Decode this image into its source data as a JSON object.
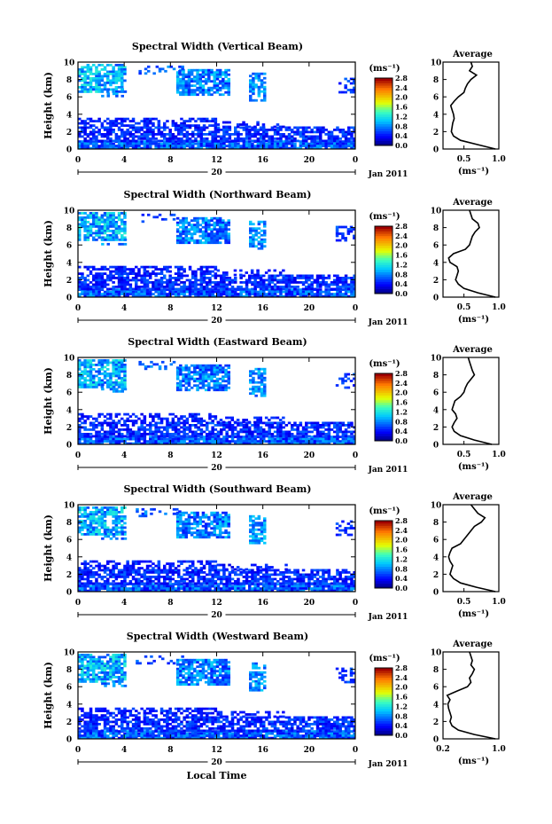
{
  "chart_data": [
    {
      "type": "heatmap",
      "title": "Spectral Width (Vertical Beam)",
      "ylabel": "Height (km)",
      "xticks": [
        "0",
        "4",
        "8",
        "12",
        "16",
        "20",
        "0"
      ],
      "xlim": [
        0,
        24
      ],
      "ylim": [
        0,
        10
      ],
      "yticks": [
        "0",
        "2",
        "4",
        "6",
        "8",
        "10"
      ],
      "date_label": "20",
      "month_label": "Jan 2011",
      "colorbar": {
        "unit": "(ms⁻¹)",
        "ticks": [
          "0.0",
          "0.4",
          "0.8",
          "1.2",
          "1.6",
          "2.0",
          "2.4",
          "2.8"
        ],
        "range": [
          0,
          2.8
        ]
      },
      "profile": {
        "title": "Average",
        "xlabel": "(ms⁻¹)",
        "xticks": [
          "0.5",
          "1.0"
        ],
        "xlim": [
          0.2,
          1.0
        ],
        "ylim": [
          0,
          10
        ],
        "heights": [
          0,
          0.5,
          1,
          1.5,
          2,
          2.5,
          3,
          3.5,
          4,
          4.5,
          5,
          5.5,
          6,
          6.5,
          7,
          7.5,
          8,
          8.5,
          9,
          9.5,
          10
        ],
        "values": [
          0.95,
          0.7,
          0.45,
          0.35,
          0.32,
          0.33,
          0.34,
          0.36,
          0.35,
          0.33,
          0.31,
          0.36,
          0.42,
          0.5,
          0.52,
          0.55,
          0.6,
          0.68,
          0.58,
          0.62,
          0.6
        ]
      }
    },
    {
      "type": "heatmap",
      "title": "Spectral Width (Northward Beam)",
      "ylabel": "Height (km)",
      "xticks": [
        "0",
        "4",
        "8",
        "12",
        "16",
        "20",
        "0"
      ],
      "xlim": [
        0,
        24
      ],
      "ylim": [
        0,
        10
      ],
      "yticks": [
        "0",
        "2",
        "4",
        "6",
        "8",
        "10"
      ],
      "date_label": "20",
      "month_label": "Jan 2011",
      "colorbar": {
        "unit": "(ms⁻¹)",
        "ticks": [
          "0.0",
          "0.4",
          "0.8",
          "1.2",
          "1.6",
          "2.0",
          "2.4",
          "2.8"
        ],
        "range": [
          0,
          2.8
        ]
      },
      "profile": {
        "title": "Average",
        "xlabel": "(ms⁻¹)",
        "xticks": [
          "0.5",
          "1.0"
        ],
        "xlim": [
          0.2,
          1.0
        ],
        "ylim": [
          0,
          10
        ],
        "heights": [
          0,
          0.5,
          1,
          1.5,
          2,
          2.5,
          3,
          3.5,
          4,
          4.5,
          5,
          5.5,
          6,
          6.5,
          7,
          7.5,
          8,
          8.5,
          9,
          9.5,
          10
        ],
        "values": [
          0.95,
          0.7,
          0.5,
          0.42,
          0.38,
          0.4,
          0.42,
          0.4,
          0.3,
          0.28,
          0.35,
          0.52,
          0.58,
          0.6,
          0.62,
          0.66,
          0.72,
          0.7,
          0.62,
          0.6,
          0.58
        ]
      }
    },
    {
      "type": "heatmap",
      "title": "Spectral Width (Eastward Beam)",
      "ylabel": "Height (km)",
      "xticks": [
        "0",
        "4",
        "8",
        "12",
        "16",
        "20",
        "0"
      ],
      "xlim": [
        0,
        24
      ],
      "ylim": [
        0,
        10
      ],
      "yticks": [
        "0",
        "2",
        "4",
        "6",
        "8",
        "10"
      ],
      "date_label": "20",
      "month_label": "Jan 2011",
      "colorbar": {
        "unit": "(ms⁻¹)",
        "ticks": [
          "0.0",
          "0.4",
          "0.8",
          "1.2",
          "1.6",
          "2.0",
          "2.4",
          "2.8"
        ],
        "range": [
          0,
          2.8
        ]
      },
      "profile": {
        "title": "Average",
        "xlabel": "(ms⁻¹)",
        "xticks": [
          "0.5",
          "1.0"
        ],
        "xlim": [
          0.2,
          1.0
        ],
        "ylim": [
          0,
          10
        ],
        "heights": [
          0,
          0.5,
          1,
          1.5,
          2,
          2.5,
          3,
          3.5,
          4,
          4.5,
          5,
          5.5,
          6,
          6.5,
          7,
          7.5,
          8,
          8.5,
          9,
          9.5,
          10
        ],
        "values": [
          0.9,
          0.65,
          0.45,
          0.36,
          0.33,
          0.36,
          0.4,
          0.38,
          0.33,
          0.35,
          0.37,
          0.45,
          0.5,
          0.52,
          0.55,
          0.6,
          0.65,
          0.62,
          0.6,
          0.58,
          0.56
        ]
      }
    },
    {
      "type": "heatmap",
      "title": "Spectral Width (Southward Beam)",
      "ylabel": "Height (km)",
      "xticks": [
        "0",
        "4",
        "8",
        "12",
        "16",
        "20",
        "0"
      ],
      "xlim": [
        0,
        24
      ],
      "ylim": [
        0,
        10
      ],
      "yticks": [
        "0",
        "2",
        "4",
        "6",
        "8",
        "10"
      ],
      "date_label": "20",
      "month_label": "Jan 2011",
      "colorbar": {
        "unit": "(ms⁻¹)",
        "ticks": [
          "0.0",
          "0.4",
          "0.8",
          "1.2",
          "1.6",
          "2.0",
          "2.4",
          "2.8"
        ],
        "range": [
          0,
          2.8
        ]
      },
      "profile": {
        "title": "Average",
        "xlabel": "(ms⁻¹)",
        "xticks": [
          "0.5",
          "1.0"
        ],
        "xlim": [
          0.2,
          1.0
        ],
        "ylim": [
          0,
          10
        ],
        "heights": [
          0,
          0.5,
          1,
          1.5,
          2,
          2.5,
          3,
          3.5,
          4,
          4.5,
          5,
          5.5,
          6,
          6.5,
          7,
          7.5,
          8,
          8.5,
          9,
          9.5,
          10
        ],
        "values": [
          0.95,
          0.68,
          0.45,
          0.35,
          0.3,
          0.32,
          0.34,
          0.3,
          0.28,
          0.3,
          0.33,
          0.45,
          0.5,
          0.55,
          0.6,
          0.65,
          0.75,
          0.8,
          0.7,
          0.65,
          0.6
        ]
      }
    },
    {
      "type": "heatmap",
      "title": "Spectral Width (Westward Beam)",
      "ylabel": "Height (km)",
      "xlabel": "Local Time",
      "xticks": [
        "0",
        "4",
        "8",
        "12",
        "16",
        "20",
        "0"
      ],
      "xlim": [
        0,
        24
      ],
      "ylim": [
        0,
        10
      ],
      "yticks": [
        "0",
        "2",
        "4",
        "6",
        "8",
        "10"
      ],
      "date_label": "20",
      "month_label": "Jan 2011",
      "colorbar": {
        "unit": "(ms⁻¹)",
        "ticks": [
          "0.0",
          "0.4",
          "0.8",
          "1.2",
          "1.6",
          "2.0",
          "2.4",
          "2.8"
        ],
        "range": [
          0,
          2.8
        ]
      },
      "profile": {
        "title": "Average",
        "xlabel": "(ms⁻¹)",
        "xticks": [
          "0.2",
          "1.0"
        ],
        "xlim": [
          0.2,
          1.0
        ],
        "ylim": [
          0,
          10
        ],
        "heights": [
          0,
          0.5,
          1,
          1.5,
          2,
          2.5,
          3,
          3.5,
          4,
          4.5,
          5,
          5.5,
          6,
          6.5,
          7,
          7.5,
          8,
          8.5,
          9,
          9.5,
          10
        ],
        "values": [
          0.95,
          0.65,
          0.42,
          0.33,
          0.3,
          0.32,
          0.3,
          0.28,
          0.27,
          0.3,
          0.26,
          0.4,
          0.55,
          0.6,
          0.58,
          0.62,
          0.65,
          0.6,
          0.62,
          0.6,
          0.58
        ]
      }
    }
  ]
}
